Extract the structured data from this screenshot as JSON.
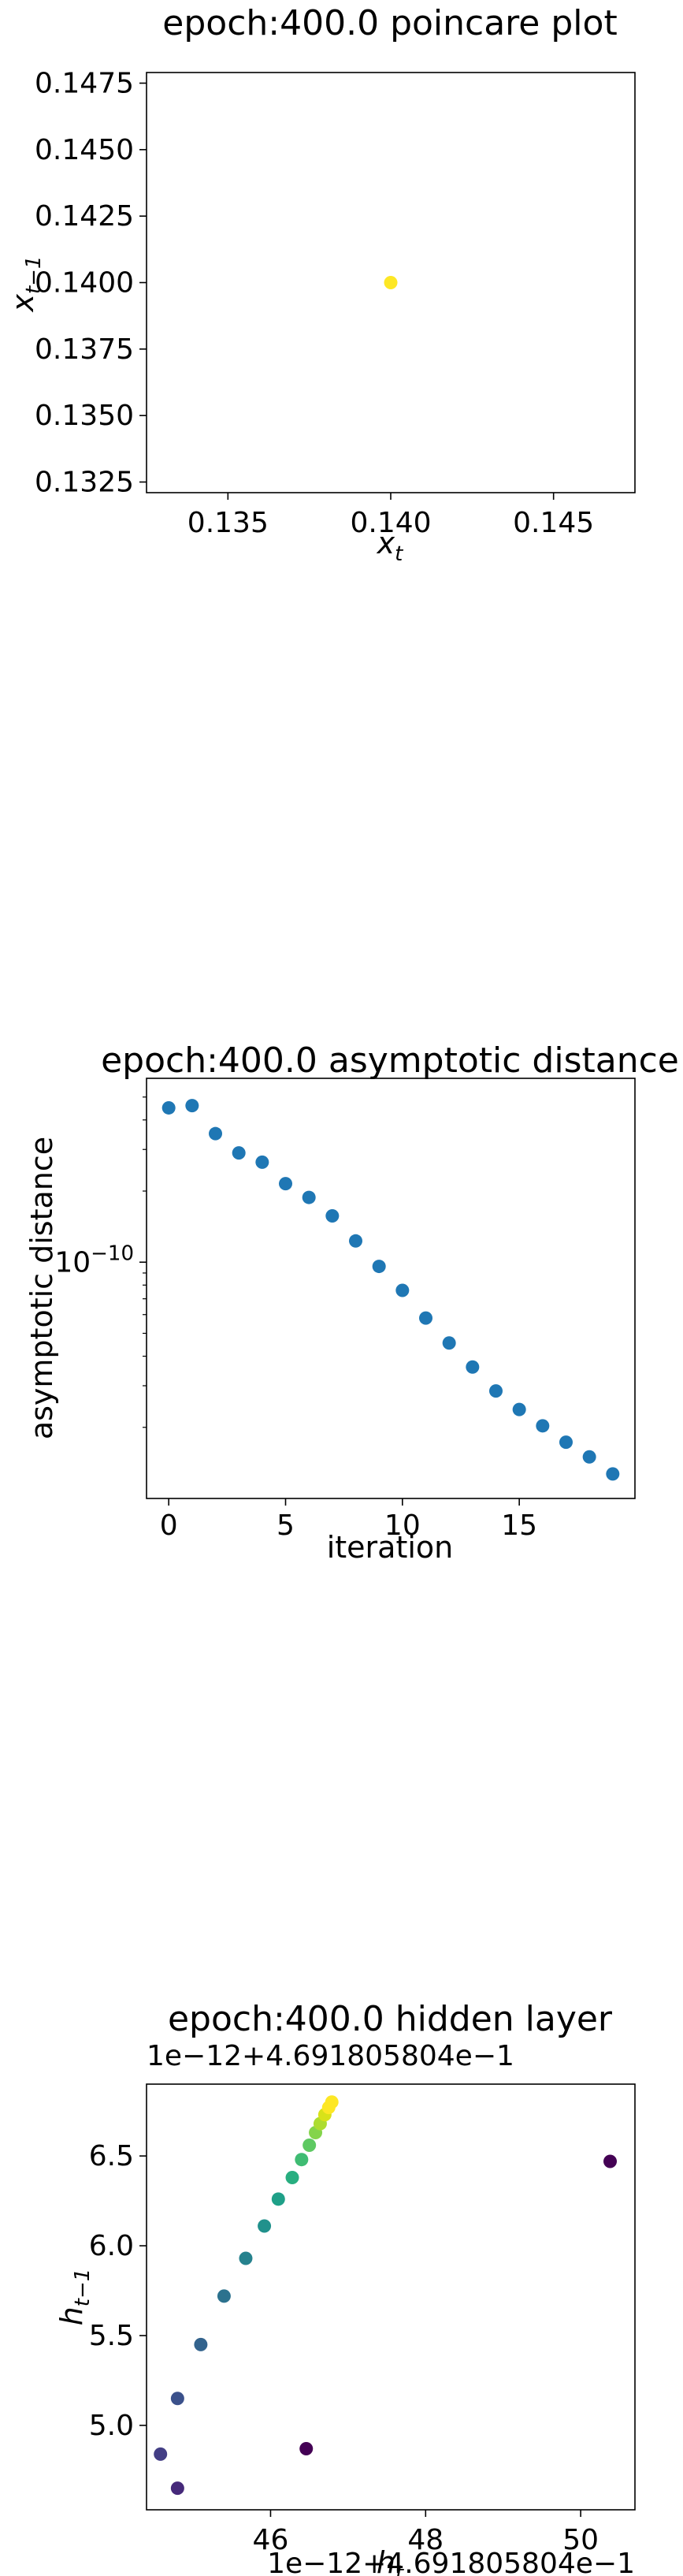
{
  "chart_data": [
    {
      "type": "scatter",
      "title": "epoch:400.0 poincare plot",
      "xlabel": "x_t",
      "ylabel": "x_{t-1}",
      "xlim": [
        0.1325,
        0.1475
      ],
      "ylim": [
        0.1321,
        0.1479
      ],
      "xticks": [
        0.135,
        0.14,
        0.145
      ],
      "xtick_labels": [
        "0.135",
        "0.140",
        "0.145"
      ],
      "yticks": [
        0.1325,
        0.135,
        0.1375,
        0.14,
        0.1425,
        0.145,
        0.1475
      ],
      "ytick_labels": [
        "0.1325",
        "0.1350",
        "0.1375",
        "0.1400",
        "0.1425",
        "0.1450",
        "0.1475"
      ],
      "points": [
        {
          "x": 0.14,
          "y": 0.14,
          "color": "#fde725"
        }
      ]
    },
    {
      "type": "scatter",
      "title": "epoch:400.0 asymptotic distance",
      "xlabel": "iteration",
      "ylabel": "asymptotic distance",
      "yscale": "log",
      "xlim": [
        -0.95,
        19.95
      ],
      "ylim": [
        1e-11,
        6e-10
      ],
      "xticks": [
        0,
        5,
        10,
        15
      ],
      "xtick_labels": [
        "0",
        "5",
        "10",
        "15"
      ],
      "ytick_major": [
        {
          "value": 1e-10,
          "base": "10",
          "exp": "−10"
        }
      ],
      "color": "#1f77b4",
      "x": [
        0,
        1,
        2,
        3,
        4,
        5,
        6,
        7,
        8,
        9,
        10,
        11,
        12,
        13,
        14,
        15,
        16,
        17,
        18,
        19
      ],
      "y": [
        4.5e-10,
        4.6e-10,
        3.5e-10,
        2.9e-10,
        2.65e-10,
        2.15e-10,
        1.88e-10,
        1.57e-10,
        1.23e-10,
        9.6e-11,
        7.6e-11,
        5.8e-11,
        4.55e-11,
        3.6e-11,
        2.85e-11,
        2.38e-11,
        2.03e-11,
        1.73e-11,
        1.5e-11,
        1.27e-11
      ]
    },
    {
      "type": "scatter",
      "title": "epoch:400.0 hidden layer",
      "xlabel": "h_t",
      "ylabel": "h_{t-1}",
      "x_offset_text": "1e−12+4.691805804e−1",
      "y_offset_text": "1e−12+4.691805804e−1",
      "xlim": [
        44.4,
        50.7
      ],
      "ylim": [
        4.53,
        6.9
      ],
      "xticks": [
        46,
        48,
        50
      ],
      "xtick_labels": [
        "46",
        "48",
        "50"
      ],
      "yticks": [
        5.0,
        5.5,
        6.0,
        6.5
      ],
      "ytick_labels": [
        "5.0",
        "5.5",
        "6.0",
        "6.5"
      ],
      "points": [
        {
          "x": 50.38,
          "y": 6.47,
          "color": "#440154"
        },
        {
          "x": 46.46,
          "y": 4.87,
          "color": "#440154"
        },
        {
          "x": 44.8,
          "y": 4.65,
          "color": "#46297a"
        },
        {
          "x": 44.58,
          "y": 4.84,
          "color": "#433e85"
        },
        {
          "x": 44.8,
          "y": 5.15,
          "color": "#3b518b"
        },
        {
          "x": 45.1,
          "y": 5.45,
          "color": "#33638d"
        },
        {
          "x": 45.4,
          "y": 5.72,
          "color": "#2c728e"
        },
        {
          "x": 45.68,
          "y": 5.93,
          "color": "#26828e"
        },
        {
          "x": 45.92,
          "y": 6.11,
          "color": "#21918c"
        },
        {
          "x": 46.1,
          "y": 6.26,
          "color": "#1fa088"
        },
        {
          "x": 46.28,
          "y": 6.38,
          "color": "#28ae80"
        },
        {
          "x": 46.4,
          "y": 6.48,
          "color": "#3fbc73"
        },
        {
          "x": 46.5,
          "y": 6.56,
          "color": "#5ec962"
        },
        {
          "x": 46.58,
          "y": 6.63,
          "color": "#84d44b"
        },
        {
          "x": 46.64,
          "y": 6.68,
          "color": "#addc30"
        },
        {
          "x": 46.7,
          "y": 6.73,
          "color": "#d8e219"
        },
        {
          "x": 46.75,
          "y": 6.77,
          "color": "#fde725"
        },
        {
          "x": 46.79,
          "y": 6.8,
          "color": "#fde725"
        }
      ]
    }
  ]
}
